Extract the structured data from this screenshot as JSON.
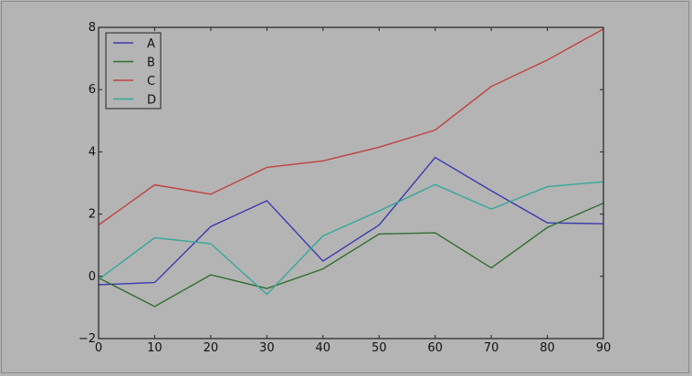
{
  "chart_data": {
    "type": "line",
    "x": [
      0,
      10,
      20,
      30,
      40,
      50,
      60,
      70,
      80,
      90
    ],
    "xlim": [
      0,
      90
    ],
    "ylim": [
      -2,
      8
    ],
    "xticks": [
      "0",
      "10",
      "20",
      "30",
      "40",
      "50",
      "60",
      "70",
      "80",
      "90"
    ],
    "yticks": [
      "−2",
      "0",
      "2",
      "4",
      "6",
      "8"
    ],
    "ytick_values": [
      -2,
      0,
      2,
      4,
      6,
      8
    ],
    "grid": false,
    "legend": "top-left",
    "series": [
      {
        "name": "A",
        "color": "#3a3ab0",
        "values": [
          -0.27,
          -0.2,
          1.6,
          2.43,
          0.49,
          1.65,
          3.82,
          2.75,
          1.72,
          1.69
        ]
      },
      {
        "name": "B",
        "color": "#2f6e2f",
        "values": [
          -0.05,
          -0.97,
          0.05,
          -0.39,
          0.24,
          1.36,
          1.4,
          0.27,
          1.57,
          2.35
        ]
      },
      {
        "name": "C",
        "color": "#c04040",
        "values": [
          1.65,
          2.94,
          2.64,
          3.5,
          3.71,
          4.15,
          4.7,
          6.1,
          6.95,
          7.95
        ]
      },
      {
        "name": "D",
        "color": "#35a89a",
        "values": [
          -0.1,
          1.24,
          1.05,
          -0.58,
          1.3,
          2.1,
          2.95,
          2.16,
          2.88,
          3.04
        ]
      }
    ]
  }
}
